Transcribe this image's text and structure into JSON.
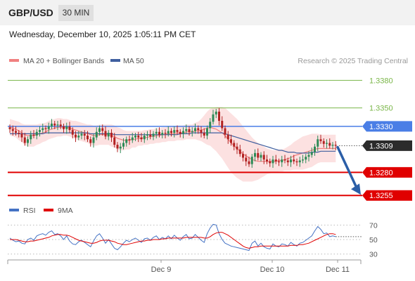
{
  "header": {
    "symbol": "GBP/USD",
    "timeframe": "30 MIN",
    "datetime": "Wednesday, December 10, 2025 1:05:11 PM CET"
  },
  "legend": {
    "ma20": "MA 20 + Bollinger Bands",
    "ma50": "MA 50",
    "credit": "Research © 2025 Trading Central",
    "rsi": "RSI",
    "rsi_ma": "9MA"
  },
  "colors": {
    "ma20": "#f08080",
    "ma50": "#3f5f9f",
    "bull": "#2e8b57",
    "bear": "#b22222",
    "resistance": "#7ab648",
    "pivot": "#4a7ee6",
    "support": "#e00000",
    "current": "#2b2b2b",
    "arrow": "#2b5ea7",
    "rsi": "#4472c4",
    "rsi_ma": "#e00000"
  },
  "chart_data": [
    {
      "type": "line",
      "title": "",
      "ylim": [
        1.3246,
        1.3394
      ],
      "x_ticks": [
        "Dec 9",
        "Dec 10",
        "Dec 11"
      ],
      "levels": [
        {
          "name": "resistance-2",
          "value": 1.338,
          "label": "1.3380",
          "style": "resistance"
        },
        {
          "name": "resistance-1",
          "value": 1.335,
          "label": "1.3350",
          "style": "resistance"
        },
        {
          "name": "pivot",
          "value": 1.333,
          "label": "1.3330",
          "style": "pivot"
        },
        {
          "name": "current",
          "value": 1.3309,
          "label": "1.3309",
          "style": "current"
        },
        {
          "name": "support-1",
          "value": 1.328,
          "label": "1.3280",
          "style": "support"
        },
        {
          "name": "support-2",
          "value": 1.3255,
          "label": "1.3255",
          "style": "support"
        }
      ],
      "close": [
        1.3327,
        1.3325,
        1.3323,
        1.3322,
        1.3318,
        1.3312,
        1.3316,
        1.3321,
        1.332,
        1.3324,
        1.3326,
        1.3328,
        1.3327,
        1.333,
        1.3333,
        1.3331,
        1.3332,
        1.333,
        1.3327,
        1.333,
        1.3326,
        1.3321,
        1.3318,
        1.332,
        1.3322,
        1.332,
        1.3316,
        1.3312,
        1.3318,
        1.3324,
        1.3328,
        1.3325,
        1.3319,
        1.3323,
        1.3318,
        1.331,
        1.3306,
        1.3308,
        1.3312,
        1.3316,
        1.3315,
        1.3318,
        1.332,
        1.3318,
        1.3316,
        1.332,
        1.3321,
        1.3319,
        1.3322,
        1.3324,
        1.3321,
        1.3323,
        1.3322,
        1.3325,
        1.3323,
        1.3326,
        1.3324,
        1.3322,
        1.3325,
        1.3327,
        1.3324,
        1.3325,
        1.3328,
        1.3326,
        1.3323,
        1.332,
        1.3328,
        1.3335,
        1.3343,
        1.3346,
        1.3336,
        1.3328,
        1.3321,
        1.3316,
        1.3312,
        1.3308,
        1.3305,
        1.33,
        1.3296,
        1.3292,
        1.3289,
        1.3297,
        1.3301,
        1.3296,
        1.3299,
        1.3294,
        1.3292,
        1.329,
        1.3294,
        1.3292,
        1.3291,
        1.3294,
        1.3293,
        1.3291,
        1.3294,
        1.3292,
        1.3291,
        1.3293,
        1.3294,
        1.3297,
        1.3299,
        1.3302,
        1.3308,
        1.3316,
        1.3314,
        1.3311,
        1.3312,
        1.3309,
        1.331,
        1.3309
      ],
      "ma20": [
        1.3329,
        1.3328,
        1.3327,
        1.3325,
        1.3323,
        1.3321,
        1.332,
        1.332,
        1.332,
        1.3321,
        1.3322,
        1.3323,
        1.3324,
        1.3326,
        1.3327,
        1.3328,
        1.3329,
        1.3329,
        1.3329,
        1.3329,
        1.3328,
        1.3327,
        1.3326,
        1.3325,
        1.3324,
        1.3323,
        1.3322,
        1.3321,
        1.332,
        1.332,
        1.3321,
        1.3321,
        1.3321,
        1.3321,
        1.332,
        1.3319,
        1.3317,
        1.3316,
        1.3315,
        1.3315,
        1.3315,
        1.3316,
        1.3316,
        1.3317,
        1.3317,
        1.3318,
        1.3318,
        1.3319,
        1.3319,
        1.332,
        1.332,
        1.3321,
        1.3321,
        1.3322,
        1.3322,
        1.3322,
        1.3323,
        1.3323,
        1.3323,
        1.3324,
        1.3324,
        1.3324,
        1.3325,
        1.3325,
        1.3326,
        1.3327,
        1.3328,
        1.3329,
        1.3328,
        1.3327,
        1.3325,
        1.3323,
        1.332,
        1.3316,
        1.3312,
        1.3309,
        1.3306,
        1.3303,
        1.33,
        1.3298,
        1.3296,
        1.3294,
        1.3293,
        1.3292,
        1.3292,
        1.3292,
        1.3292,
        1.3292,
        1.3292,
        1.3292,
        1.3293,
        1.3293,
        1.3294,
        1.3295,
        1.3296,
        1.3298,
        1.3299,
        1.33,
        1.3301,
        1.3302,
        1.3303,
        1.3304,
        1.3305,
        1.3306,
        1.3306,
        1.3306,
        1.3306,
        1.3306,
        1.3306,
        1.3306
      ],
      "ma50": [
        1.3322,
        1.3322,
        1.3322,
        1.3322,
        1.3322,
        1.3322,
        1.3322,
        1.3322,
        1.3322,
        1.3322,
        1.3322,
        1.3322,
        1.3323,
        1.3323,
        1.3323,
        1.3323,
        1.3323,
        1.3323,
        1.3323,
        1.3323,
        1.3323,
        1.3323,
        1.3323,
        1.3323,
        1.3323,
        1.3323,
        1.3323,
        1.3322,
        1.3322,
        1.3322,
        1.3322,
        1.3322,
        1.3322,
        1.3322,
        1.3322,
        1.3321,
        1.3321,
        1.3321,
        1.3321,
        1.3321,
        1.3321,
        1.3321,
        1.3321,
        1.3321,
        1.3321,
        1.3321,
        1.3321,
        1.3321,
        1.3321,
        1.3321,
        1.3321,
        1.3321,
        1.3321,
        1.3321,
        1.3321,
        1.3321,
        1.3321,
        1.3322,
        1.3322,
        1.3322,
        1.3322,
        1.3323,
        1.3323,
        1.3323,
        1.3323,
        1.3323,
        1.3323,
        1.3323,
        1.3323,
        1.3323,
        1.3323,
        1.3323,
        1.3322,
        1.3321,
        1.332,
        1.3319,
        1.3318,
        1.3317,
        1.3316,
        1.3315,
        1.3314,
        1.3313,
        1.3312,
        1.3311,
        1.331,
        1.3309,
        1.3308,
        1.3307,
        1.3306,
        1.3305,
        1.3304,
        1.3304,
        1.3303,
        1.3302,
        1.3302,
        1.3302,
        1.3301,
        1.3301,
        1.3301,
        1.3301,
        1.3301,
        1.3302,
        1.3302,
        1.3302,
        1.3303,
        1.3303,
        1.3303,
        1.3303,
        1.3303,
        1.3303
      ],
      "band_width": [
        0.0009,
        0.0009,
        0.0009,
        0.001,
        0.001,
        0.0011,
        0.0012,
        0.0012,
        0.0012,
        0.0011,
        0.0011,
        0.001,
        0.001,
        0.001,
        0.001,
        0.001,
        0.001,
        0.001,
        0.0009,
        0.0009,
        0.0009,
        0.0009,
        0.001,
        0.001,
        0.001,
        0.001,
        0.001,
        0.0011,
        0.0011,
        0.0011,
        0.0011,
        0.0011,
        0.0011,
        0.0011,
        0.0012,
        0.0012,
        0.0012,
        0.0012,
        0.0011,
        0.001,
        0.001,
        0.0009,
        0.0009,
        0.0008,
        0.0008,
        0.0008,
        0.0008,
        0.0008,
        0.0008,
        0.0008,
        0.0008,
        0.0008,
        0.0008,
        0.0008,
        0.0008,
        0.0008,
        0.0008,
        0.0008,
        0.0008,
        0.0008,
        0.0008,
        0.0008,
        0.0009,
        0.001,
        0.0012,
        0.0015,
        0.0018,
        0.002,
        0.0022,
        0.0024,
        0.0026,
        0.0028,
        0.003,
        0.0031,
        0.0032,
        0.0032,
        0.0032,
        0.0031,
        0.003,
        0.0028,
        0.0026,
        0.0024,
        0.0022,
        0.002,
        0.0018,
        0.0016,
        0.0014,
        0.0013,
        0.0012,
        0.0012,
        0.0012,
        0.0012,
        0.0012,
        0.0013,
        0.0014,
        0.0015,
        0.0016,
        0.0017,
        0.0018,
        0.0018,
        0.0018,
        0.0018,
        0.0017,
        0.0016,
        0.0015,
        0.0015,
        0.0015,
        0.0015,
        0.0015,
        0.0015
      ],
      "projection": {
        "from": 1.3309,
        "to": 1.3255
      }
    },
    {
      "type": "line",
      "title": "",
      "ylim": [
        20,
        80
      ],
      "y_ticks": [
        70,
        50,
        30
      ],
      "rsi": [
        52,
        49,
        47,
        48,
        45,
        44,
        50,
        52,
        49,
        55,
        57,
        58,
        56,
        60,
        62,
        57,
        58,
        55,
        50,
        55,
        48,
        44,
        43,
        47,
        49,
        46,
        43,
        40,
        48,
        55,
        58,
        52,
        45,
        50,
        44,
        38,
        36,
        40,
        45,
        49,
        47,
        50,
        52,
        49,
        46,
        51,
        52,
        49,
        53,
        55,
        50,
        53,
        51,
        55,
        51,
        56,
        52,
        49,
        54,
        57,
        51,
        52,
        57,
        53,
        49,
        46,
        58,
        66,
        71,
        70,
        58,
        50,
        45,
        43,
        41,
        40,
        39,
        38,
        37,
        36,
        35,
        45,
        48,
        41,
        45,
        40,
        38,
        37,
        44,
        41,
        40,
        44,
        43,
        41,
        46,
        43,
        41,
        45,
        46,
        49,
        52,
        55,
        62,
        68,
        64,
        58,
        59,
        54,
        55,
        54
      ],
      "rsi_ma": [
        50,
        50,
        50,
        49,
        48,
        47,
        47,
        48,
        48,
        49,
        50,
        51,
        52,
        53,
        55,
        56,
        57,
        57,
        56,
        56,
        55,
        53,
        51,
        49,
        48,
        47,
        46,
        45,
        45,
        46,
        48,
        49,
        49,
        49,
        48,
        47,
        45,
        44,
        43,
        43,
        44,
        45,
        46,
        47,
        48,
        48,
        49,
        49,
        50,
        50,
        50,
        51,
        51,
        52,
        52,
        52,
        52,
        52,
        52,
        53,
        53,
        53,
        53,
        53,
        53,
        52,
        52,
        54,
        57,
        59,
        60,
        60,
        58,
        56,
        53,
        50,
        47,
        44,
        41,
        39,
        38,
        39,
        40,
        40,
        41,
        41,
        41,
        41,
        41,
        41,
        41,
        41,
        41,
        41,
        42,
        42,
        42,
        43,
        43,
        44,
        45,
        47,
        49,
        51,
        53,
        55,
        57,
        58,
        58,
        57
      ]
    }
  ]
}
